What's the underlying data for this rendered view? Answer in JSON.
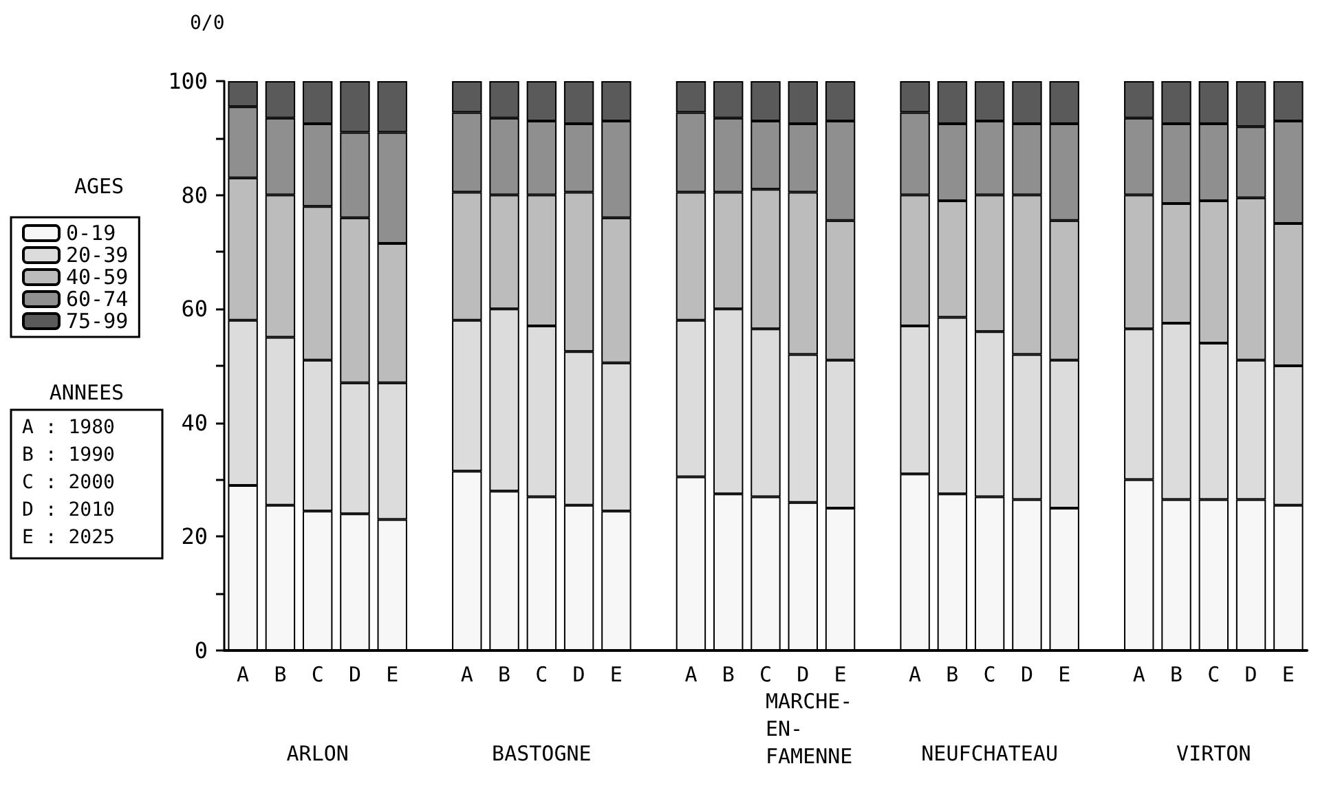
{
  "chart_data": {
    "type": "bar",
    "stacked": true,
    "ylabel": "0/0",
    "legend_title": "AGES",
    "legend": "left",
    "grid": false,
    "categories": [
      "A",
      "B",
      "C",
      "D",
      "E",
      null,
      "A",
      "B",
      "C",
      "D",
      "E",
      null,
      "A",
      "B",
      "C",
      "D",
      "E",
      null,
      "A",
      "B",
      "C",
      "D",
      "E",
      null,
      "A",
      "B",
      "C",
      "D",
      "E"
    ],
    "ylim": [
      0,
      100
    ],
    "yticks": [
      0,
      {
        "value": 10,
        "label": null
      },
      20,
      {
        "value": 30,
        "label": null
      },
      40,
      {
        "value": 50,
        "label": null
      },
      60,
      {
        "value": 70,
        "label": null
      },
      80,
      {
        "value": 90,
        "label": null
      },
      100
    ],
    "series": [
      {
        "name": "0-19",
        "color": "#f7f7f7",
        "values": [
          29,
          25.5,
          24.5,
          24,
          23,
          null,
          31.5,
          28,
          27,
          25.5,
          24.5,
          null,
          30.5,
          27.5,
          27,
          26,
          25,
          null,
          31,
          27.5,
          27,
          26.5,
          25,
          null,
          30,
          26.5,
          26.5,
          26.5,
          25.5
        ]
      },
      {
        "name": "20-39",
        "color": "#dcdcdc",
        "values": [
          29,
          29.5,
          26.5,
          23,
          24,
          null,
          26.5,
          32,
          30,
          27,
          26,
          null,
          27.5,
          32.5,
          29.5,
          26,
          26,
          null,
          26,
          31,
          29,
          25.5,
          26,
          null,
          26.5,
          31,
          27.5,
          24.5,
          24.5
        ]
      },
      {
        "name": "40-59",
        "color": "#bcbcbc",
        "values": [
          25,
          25,
          27,
          29,
          24.5,
          null,
          22.5,
          20,
          23,
          28,
          25.5,
          null,
          22.5,
          20.5,
          24.5,
          28.5,
          24.5,
          null,
          23,
          20.5,
          24,
          28,
          24.5,
          null,
          23.5,
          21,
          25,
          28.5,
          25
        ]
      },
      {
        "name": "60-74",
        "color": "#8f8f8f",
        "values": [
          12.5,
          13.5,
          14.5,
          15,
          19.5,
          null,
          14,
          13.5,
          13,
          12,
          17,
          null,
          14,
          13,
          12,
          12,
          17.5,
          null,
          14.5,
          13.5,
          13,
          12.5,
          17,
          null,
          13.5,
          14,
          13.5,
          12.5,
          18
        ]
      },
      {
        "name": "75-99",
        "color": "#5a5a5a",
        "values": [
          4.5,
          6.5,
          7.5,
          9,
          9,
          null,
          5.5,
          6.5,
          7,
          7.5,
          7,
          null,
          5.5,
          6.5,
          7,
          7.5,
          7,
          null,
          5.5,
          7.5,
          7,
          7.5,
          7.5,
          null,
          6.5,
          7.5,
          7.5,
          8,
          7
        ]
      }
    ],
    "annotations": [
      "ARLON",
      "BASTOGNE",
      "MARCHE-\nEN-\nFAMENNE",
      "NEUFCHATEAU",
      "VIRTON",
      "ANNEES",
      "A : 1980",
      "B : 1990",
      "C : 2000",
      "D : 2010",
      "E : 2025"
    ]
  }
}
